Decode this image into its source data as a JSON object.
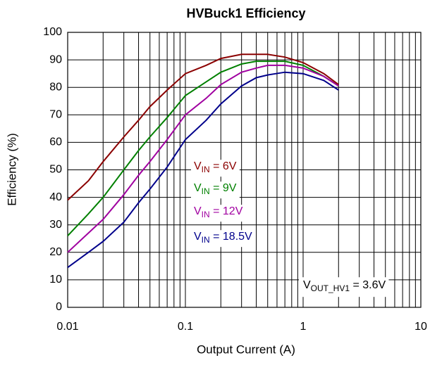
{
  "chart_data": {
    "type": "line",
    "title": "HVBuck1 Efficiency",
    "x_label": "Output Current (A)",
    "y_label": "Efficiency (%)",
    "annotation": "VOUT_HV1 = 3.6V",
    "x_scale": "log",
    "grid": true,
    "xlim": [
      0.01,
      10
    ],
    "xticks": [
      0.01,
      0.1,
      1,
      10
    ],
    "ylim": [
      0,
      100
    ],
    "yticks": [
      0,
      10,
      20,
      30,
      40,
      50,
      60,
      70,
      80,
      90,
      100
    ],
    "x": [
      0.01,
      0.015,
      0.02,
      0.03,
      0.04,
      0.05,
      0.07,
      0.1,
      0.15,
      0.2,
      0.3,
      0.4,
      0.5,
      0.7,
      1,
      1.5,
      2
    ],
    "series": [
      {
        "name": "VIN = 6V",
        "color": "#8b0000",
        "values": [
          39,
          46,
          53,
          62,
          68,
          73,
          79,
          85,
          88,
          90.5,
          92,
          92,
          92,
          91,
          89,
          85,
          81
        ]
      },
      {
        "name": "VIN = 9V",
        "color": "#008000",
        "values": [
          26,
          34,
          40,
          50,
          57,
          62,
          69,
          77,
          82,
          85.5,
          88.5,
          89.5,
          89.5,
          89.5,
          88,
          84,
          80.5
        ]
      },
      {
        "name": "VIN = 12V",
        "color": "#a000a0",
        "values": [
          20,
          27,
          32,
          41,
          48,
          53,
          61,
          70,
          76,
          81,
          85.5,
          87,
          88,
          88,
          87,
          84,
          80.5
        ]
      },
      {
        "name": "VIN = 18.5V",
        "color": "#00008b",
        "values": [
          14.5,
          20,
          24,
          31,
          38,
          43,
          51,
          61,
          68,
          74,
          80.5,
          83.5,
          84.5,
          85.5,
          85,
          82.5,
          79
        ]
      }
    ]
  }
}
